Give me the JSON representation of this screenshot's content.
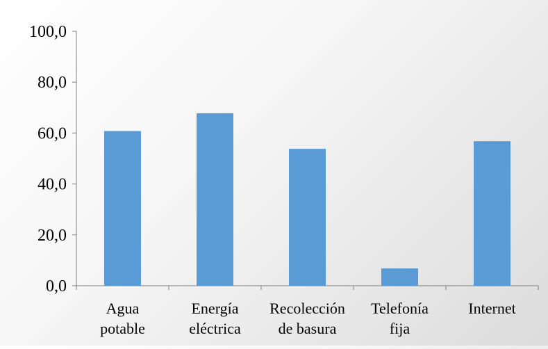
{
  "chart_data": {
    "type": "bar",
    "categories": [
      [
        "Agua",
        "potable"
      ],
      [
        "Energía",
        "eléctrica"
      ],
      [
        "Recolección",
        "de basura"
      ],
      [
        "Telefonía",
        "fija"
      ],
      [
        "Internet"
      ]
    ],
    "values": [
      60.8,
      67.8,
      53.8,
      6.8,
      56.8
    ],
    "ylim": [
      0,
      100
    ],
    "yticks": [
      "0,0",
      "20,0",
      "40,0",
      "60,0",
      "80,0",
      "100,0"
    ],
    "grid": false,
    "legend": "none",
    "colors": {
      "bar": "#5b9bd5",
      "axis": "#7f7f7f"
    }
  }
}
